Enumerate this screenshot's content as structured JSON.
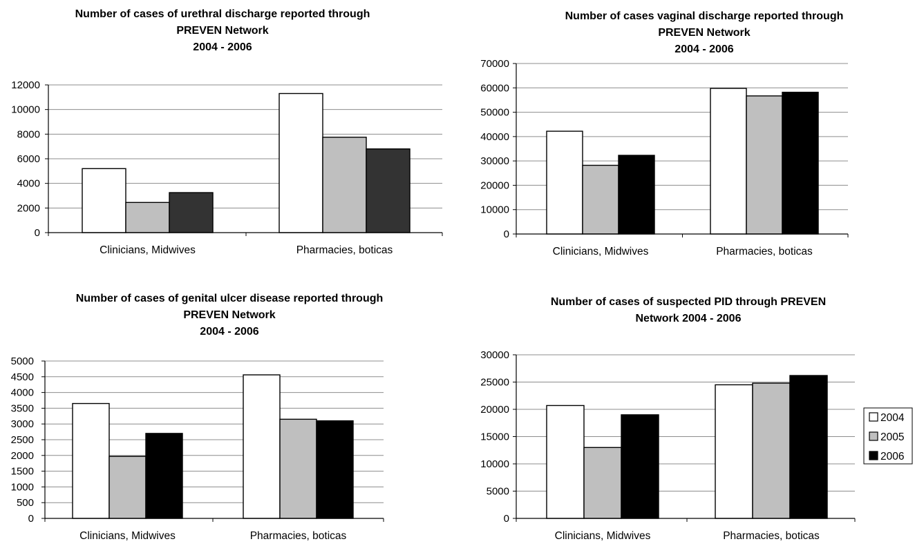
{
  "chart_data": [
    {
      "type": "bar",
      "title": [
        "Number of cases of urethral discharge reported through",
        "PREVEN Network",
        "2004 - 2006"
      ],
      "categories": [
        "Clinicians, Midwives",
        "Pharmacies, boticas"
      ],
      "series": [
        {
          "name": "2004",
          "values": [
            5200,
            11300
          ]
        },
        {
          "name": "2005",
          "values": [
            2450,
            7750
          ]
        },
        {
          "name": "2006",
          "values": [
            3250,
            6800
          ]
        }
      ],
      "ylim": [
        0,
        12000
      ],
      "yticks": [
        0,
        2000,
        4000,
        6000,
        8000,
        10000,
        12000
      ],
      "series_colors": [
        "#ffffff",
        "#bfbfbf",
        "#333333"
      ],
      "grid": true
    },
    {
      "type": "bar",
      "title": [
        "Number of cases vaginal discharge reported through",
        "PREVEN Network",
        "2004 - 2006"
      ],
      "categories": [
        "Clinicians, Midwives",
        "Pharmacies, boticas"
      ],
      "series": [
        {
          "name": "2004",
          "values": [
            42200,
            59800
          ]
        },
        {
          "name": "2005",
          "values": [
            28200,
            56700
          ]
        },
        {
          "name": "2006",
          "values": [
            32300,
            58200
          ]
        }
      ],
      "ylim": [
        0,
        70000
      ],
      "yticks": [
        0,
        10000,
        20000,
        30000,
        40000,
        50000,
        60000,
        70000
      ],
      "series_colors": [
        "#ffffff",
        "#bfbfbf",
        "#000000"
      ],
      "grid": true
    },
    {
      "type": "bar",
      "title": [
        "Number of cases of genital ulcer disease reported through",
        "PREVEN Network",
        "2004 - 2006"
      ],
      "categories": [
        "Clinicians, Midwives",
        "Pharmacies, boticas"
      ],
      "series": [
        {
          "name": "2004",
          "values": [
            3650,
            4560
          ]
        },
        {
          "name": "2005",
          "values": [
            1970,
            3150
          ]
        },
        {
          "name": "2006",
          "values": [
            2700,
            3100
          ]
        }
      ],
      "ylim": [
        0,
        5000
      ],
      "yticks": [
        0,
        500,
        1000,
        1500,
        2000,
        2500,
        3000,
        3500,
        4000,
        4500,
        5000
      ],
      "series_colors": [
        "#ffffff",
        "#bfbfbf",
        "#000000"
      ],
      "grid": true
    },
    {
      "type": "bar",
      "title": [
        "Number of cases of suspected PID through PREVEN",
        "Network 2004 - 2006"
      ],
      "categories": [
        "Clinicians, Midwives",
        "Pharmacies, boticas"
      ],
      "series": [
        {
          "name": "2004",
          "values": [
            20700,
            24500
          ]
        },
        {
          "name": "2005",
          "values": [
            13000,
            24800
          ]
        },
        {
          "name": "2006",
          "values": [
            19000,
            26200
          ]
        }
      ],
      "ylim": [
        0,
        30000
      ],
      "yticks": [
        0,
        5000,
        10000,
        15000,
        20000,
        25000,
        30000
      ],
      "series_colors": [
        "#ffffff",
        "#bfbfbf",
        "#000000"
      ],
      "grid": true,
      "legend": {
        "position": "right",
        "items": [
          {
            "label": "2004",
            "color": "#ffffff"
          },
          {
            "label": "2005",
            "color": "#bfbfbf"
          },
          {
            "label": "2006",
            "color": "#000000"
          }
        ]
      }
    }
  ]
}
